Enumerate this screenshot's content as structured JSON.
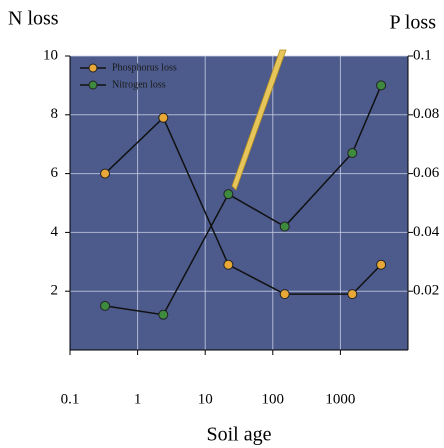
{
  "chart_data": {
    "type": "line",
    "y_label": "N loss",
    "y2_label": "P loss",
    "x_label": "Soil age",
    "x": [
      0.33,
      2.4,
      22,
      150,
      1500,
      4000
    ],
    "xlog": true,
    "xlim": [
      0.1,
      10000
    ],
    "xticks": [
      0.1,
      1,
      10,
      100,
      1000
    ],
    "ylim": [
      0,
      10
    ],
    "yticks": [
      2,
      4,
      6,
      8,
      10
    ],
    "y2lim": [
      0,
      0.1
    ],
    "y2ticks": [
      0.02,
      0.04,
      0.06,
      0.08,
      0.1
    ],
    "grid": true,
    "legend": "upper left",
    "background": "#4c5b8c",
    "series": [
      {
        "name": "Phosphorus loss",
        "color": "#e8a838",
        "axis": "y2",
        "values": [
          0.06,
          0.079,
          0.029,
          0.019,
          0.019,
          0.029
        ]
      },
      {
        "name": "Nitrogen loss",
        "color": "#3e8a3e",
        "values": [
          1.5,
          1.2,
          5.3,
          4.2,
          6.7,
          9.0
        ]
      }
    ]
  }
}
